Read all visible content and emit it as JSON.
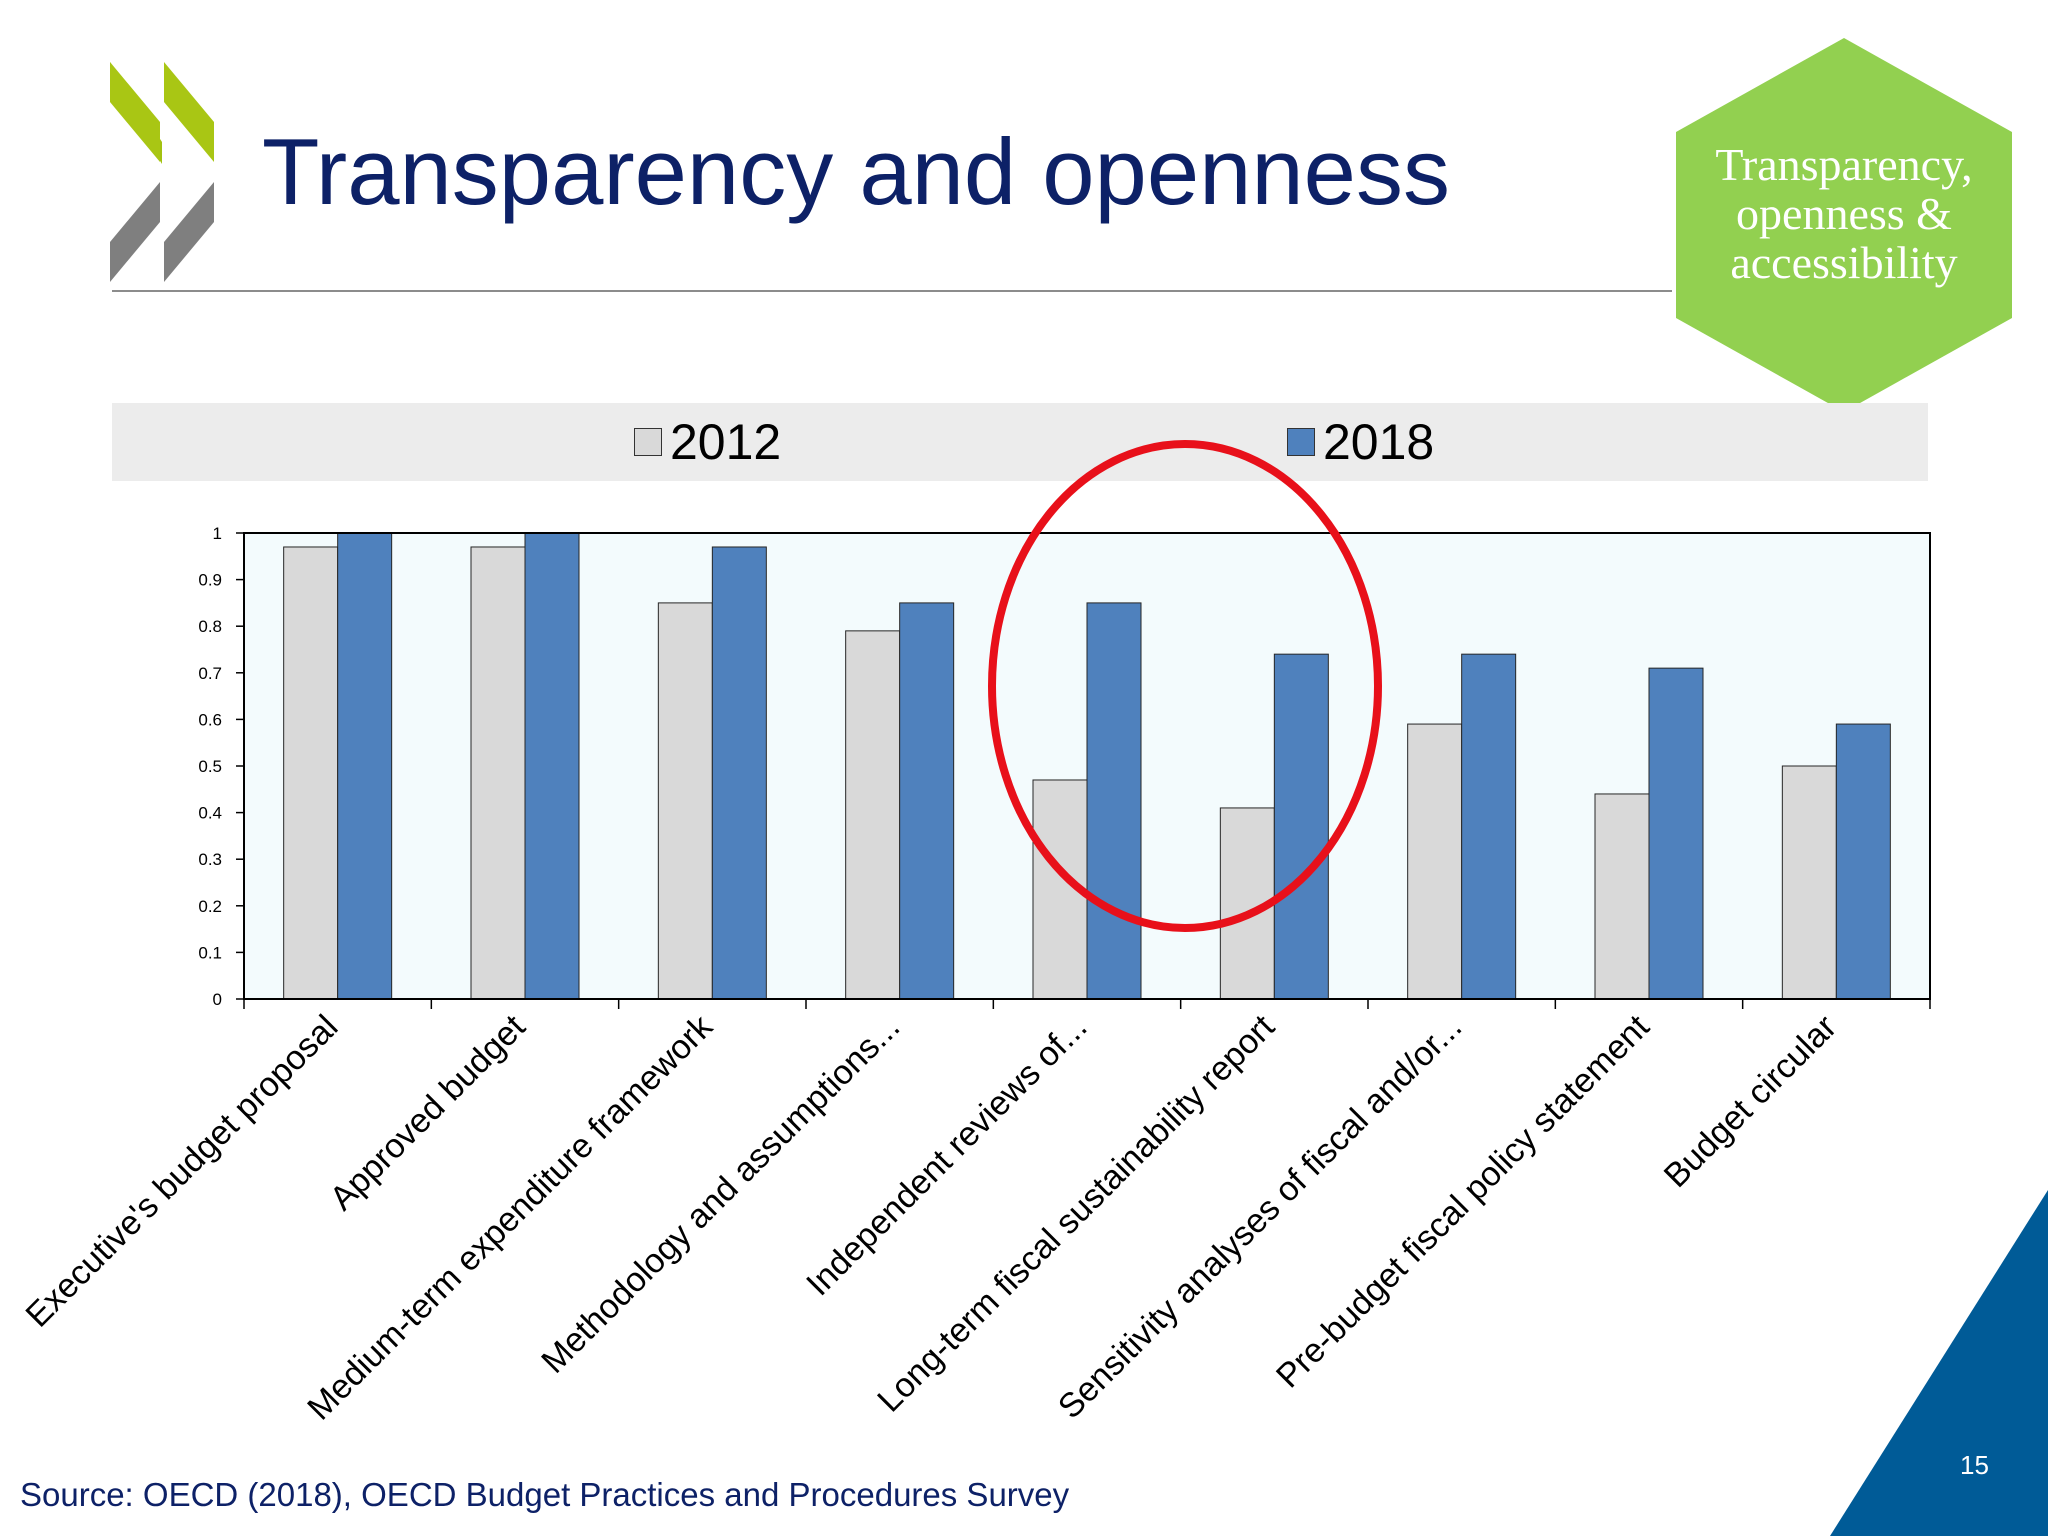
{
  "slide": {
    "title": "Transparency and openness",
    "badge_lines": [
      "Transparency,",
      "openness &",
      "accessibility"
    ],
    "source": "Source: OECD (2018), OECD Budget Practices and Procedures Survey",
    "page_number": "15",
    "icons": [
      "oecd-chevron-logo-icon",
      "hexagon-badge-icon",
      "corner-triangle-icon",
      "highlight-circle-icon"
    ]
  },
  "colors": {
    "title": "#0d2167",
    "series_2012": "#d9d9d9",
    "series_2018": "#4f81bd",
    "plot_background": "#f3fbfd",
    "legend_background": "#ececec",
    "badge": "#92d050",
    "highlight": "#e8101a",
    "corner": "#005b97"
  },
  "chart_data": {
    "type": "bar",
    "categories": [
      "Executive's budget proposal",
      "Approved budget",
      "Medium-term expenditure framework",
      "Methodology and assumptions...",
      "Independent reviews of...",
      "Long-term fiscal sustainability report",
      "Sensitivity analyses of fiscal and/or...",
      "Pre-budget fiscal policy statement",
      "Budget circular"
    ],
    "series": [
      {
        "name": "2012",
        "values": [
          0.97,
          0.97,
          0.85,
          0.79,
          0.47,
          0.41,
          0.59,
          0.44,
          0.5
        ]
      },
      {
        "name": "2018",
        "values": [
          1.0,
          1.0,
          0.97,
          0.85,
          0.85,
          0.74,
          0.74,
          0.71,
          0.59
        ]
      }
    ],
    "y_ticks": [
      "0",
      "0.1",
      "0.2",
      "0.3",
      "0.4",
      "0.5",
      "0.6",
      "0.7",
      "0.8",
      "0.9",
      "1"
    ],
    "ylim": [
      0,
      1
    ],
    "legend_position": "top",
    "grid": false,
    "highlighted_categories": [
      "Independent reviews of...",
      "Long-term fiscal sustainability report"
    ]
  }
}
